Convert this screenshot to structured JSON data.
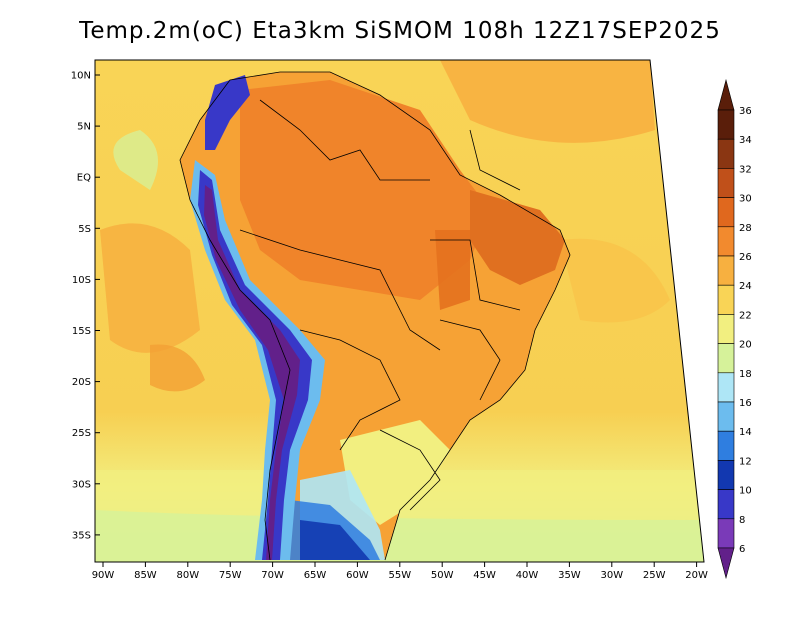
{
  "title": "Temp.2m(oC) Eta3km SiSMOM 108h 12Z17SEP2025",
  "lat_labels": [
    "10N",
    "5N",
    "EQ",
    "5S",
    "10S",
    "15S",
    "20S",
    "25S",
    "30S",
    "35S"
  ],
  "lon_labels": [
    "90W",
    "85W",
    "80W",
    "75W",
    "70W",
    "65W",
    "60W",
    "55W",
    "50W",
    "45W",
    "40W",
    "35W",
    "30W",
    "25W",
    "20W"
  ],
  "colorbar": {
    "labels": [
      "36",
      "34",
      "32",
      "30",
      "28",
      "26",
      "24",
      "22",
      "20",
      "18",
      "16",
      "14",
      "12",
      "10",
      "8",
      "6"
    ],
    "colors": [
      "#5a1e0a",
      "#8a3612",
      "#c0501a",
      "#e0681e",
      "#f28a2e",
      "#f7b040",
      "#f9d456",
      "#f2ef80",
      "#d6f29a",
      "#aee6f6",
      "#6cbcee",
      "#2f7ee0",
      "#1238b0",
      "#3838c8",
      "#7a3ab8",
      "#62208a"
    ]
  },
  "map_colors": {
    "ocean_warm": "#f9c44a",
    "ocean_mid": "#f7e06e",
    "ocean_cool": "#e8f08a",
    "ocean_pale": "#cdeea0",
    "ocean_cold": "#9ee0f2",
    "land_hot": "#f5962e",
    "land_very_hot": "#e4711e",
    "land_warm": "#f6b03c",
    "andes_cold": "#5a2a8a",
    "andes_mid": "#3a3ac0",
    "andes_edge": "#79b8ea"
  }
}
